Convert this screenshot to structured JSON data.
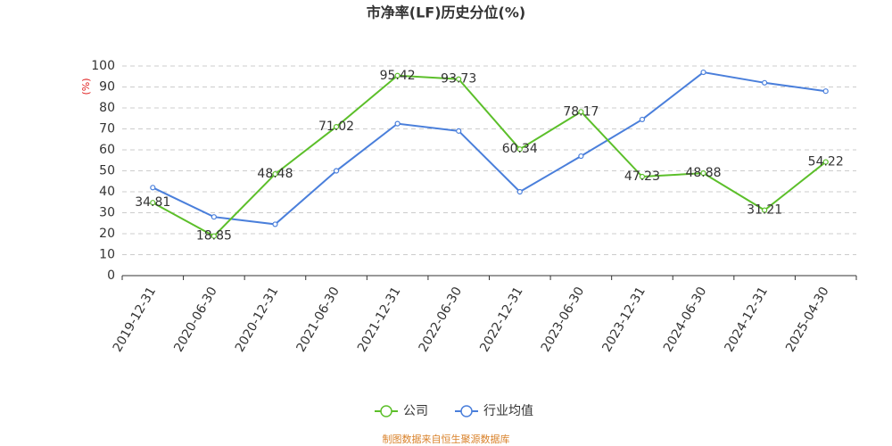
{
  "chart_data": {
    "type": "line",
    "title": "市净率(LF)历史分位(%)",
    "y_label": "(%)",
    "categories": [
      "2019-12-31",
      "2020-06-30",
      "2020-12-31",
      "2021-06-30",
      "2021-12-31",
      "2022-06-30",
      "2022-12-31",
      "2023-06-30",
      "2023-12-31",
      "2024-06-30",
      "2024-12-31",
      "2025-04-30"
    ],
    "series": [
      {
        "name": "公司",
        "color": "#5cbf2a",
        "values": [
          34.81,
          18.85,
          48.48,
          71.02,
          95.42,
          93.73,
          60.34,
          78.17,
          47.23,
          48.88,
          31.21,
          54.22
        ]
      },
      {
        "name": "行业均值",
        "color": "#4a7fdb",
        "values": [
          42,
          28,
          24.5,
          50,
          72.5,
          69,
          40,
          57,
          74.5,
          97,
          92,
          88
        ]
      }
    ],
    "ylim": [
      0,
      100
    ],
    "yticks": [
      0,
      10,
      20,
      30,
      40,
      50,
      60,
      70,
      80,
      90,
      100
    ],
    "grid": true,
    "source": "制图数据来自恒生聚源数据库"
  }
}
